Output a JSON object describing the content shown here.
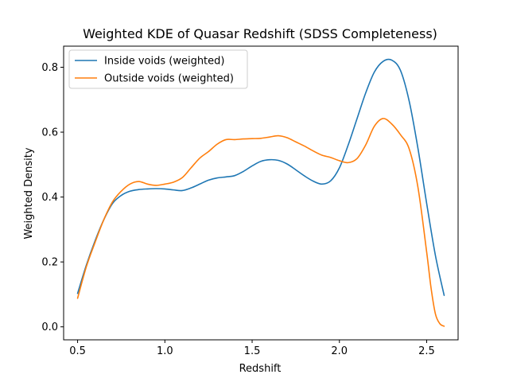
{
  "chart_data": {
    "type": "line",
    "title": "Weighted KDE of Quasar Redshift (SDSS Completeness)",
    "xlabel": "Redshift",
    "ylabel": "Weighted Density",
    "xlim": [
      0.42,
      2.68
    ],
    "ylim": [
      -0.04,
      0.865
    ],
    "xticks": [
      0.5,
      1.0,
      1.5,
      2.0,
      2.5
    ],
    "xtick_labels": [
      "0.5",
      "1.0",
      "1.5",
      "2.0",
      "2.5"
    ],
    "yticks": [
      0.0,
      0.2,
      0.4,
      0.6,
      0.8
    ],
    "ytick_labels": [
      "0.0",
      "0.2",
      "0.4",
      "0.6",
      "0.8"
    ],
    "grid": false,
    "legend_position": "top-left",
    "series": [
      {
        "name": "Inside voids (weighted)",
        "color": "#1f77b4",
        "x": [
          0.5,
          0.55,
          0.6,
          0.65,
          0.7,
          0.75,
          0.8,
          0.85,
          0.9,
          0.95,
          1.0,
          1.05,
          1.1,
          1.15,
          1.2,
          1.25,
          1.3,
          1.35,
          1.4,
          1.45,
          1.5,
          1.55,
          1.6,
          1.65,
          1.7,
          1.75,
          1.8,
          1.85,
          1.9,
          1.95,
          2.0,
          2.05,
          2.1,
          2.15,
          2.2,
          2.25,
          2.3,
          2.35,
          2.4,
          2.45,
          2.5,
          2.55,
          2.6
        ],
        "y": [
          0.103,
          0.19,
          0.265,
          0.33,
          0.38,
          0.405,
          0.418,
          0.423,
          0.425,
          0.426,
          0.425,
          0.422,
          0.42,
          0.428,
          0.44,
          0.452,
          0.459,
          0.462,
          0.466,
          0.479,
          0.496,
          0.51,
          0.515,
          0.513,
          0.502,
          0.484,
          0.465,
          0.449,
          0.44,
          0.45,
          0.49,
          0.56,
          0.64,
          0.72,
          0.785,
          0.818,
          0.822,
          0.79,
          0.695,
          0.55,
          0.38,
          0.22,
          0.097
        ]
      },
      {
        "name": "Outside voids (weighted)",
        "color": "#ff7f0e",
        "x": [
          0.5,
          0.55,
          0.6,
          0.65,
          0.7,
          0.75,
          0.8,
          0.85,
          0.9,
          0.95,
          1.0,
          1.05,
          1.1,
          1.15,
          1.2,
          1.25,
          1.3,
          1.35,
          1.4,
          1.45,
          1.5,
          1.55,
          1.6,
          1.65,
          1.7,
          1.75,
          1.8,
          1.85,
          1.9,
          1.95,
          2.0,
          2.05,
          2.1,
          2.15,
          2.2,
          2.25,
          2.3,
          2.35,
          2.4,
          2.45,
          2.5,
          2.525,
          2.55,
          2.575,
          2.6
        ],
        "y": [
          0.088,
          0.185,
          0.26,
          0.33,
          0.385,
          0.418,
          0.44,
          0.448,
          0.44,
          0.436,
          0.44,
          0.446,
          0.46,
          0.49,
          0.52,
          0.54,
          0.563,
          0.577,
          0.577,
          0.579,
          0.58,
          0.581,
          0.585,
          0.589,
          0.583,
          0.57,
          0.557,
          0.542,
          0.529,
          0.522,
          0.512,
          0.506,
          0.518,
          0.56,
          0.618,
          0.642,
          0.625,
          0.592,
          0.548,
          0.43,
          0.23,
          0.12,
          0.04,
          0.01,
          0.002
        ]
      }
    ]
  }
}
